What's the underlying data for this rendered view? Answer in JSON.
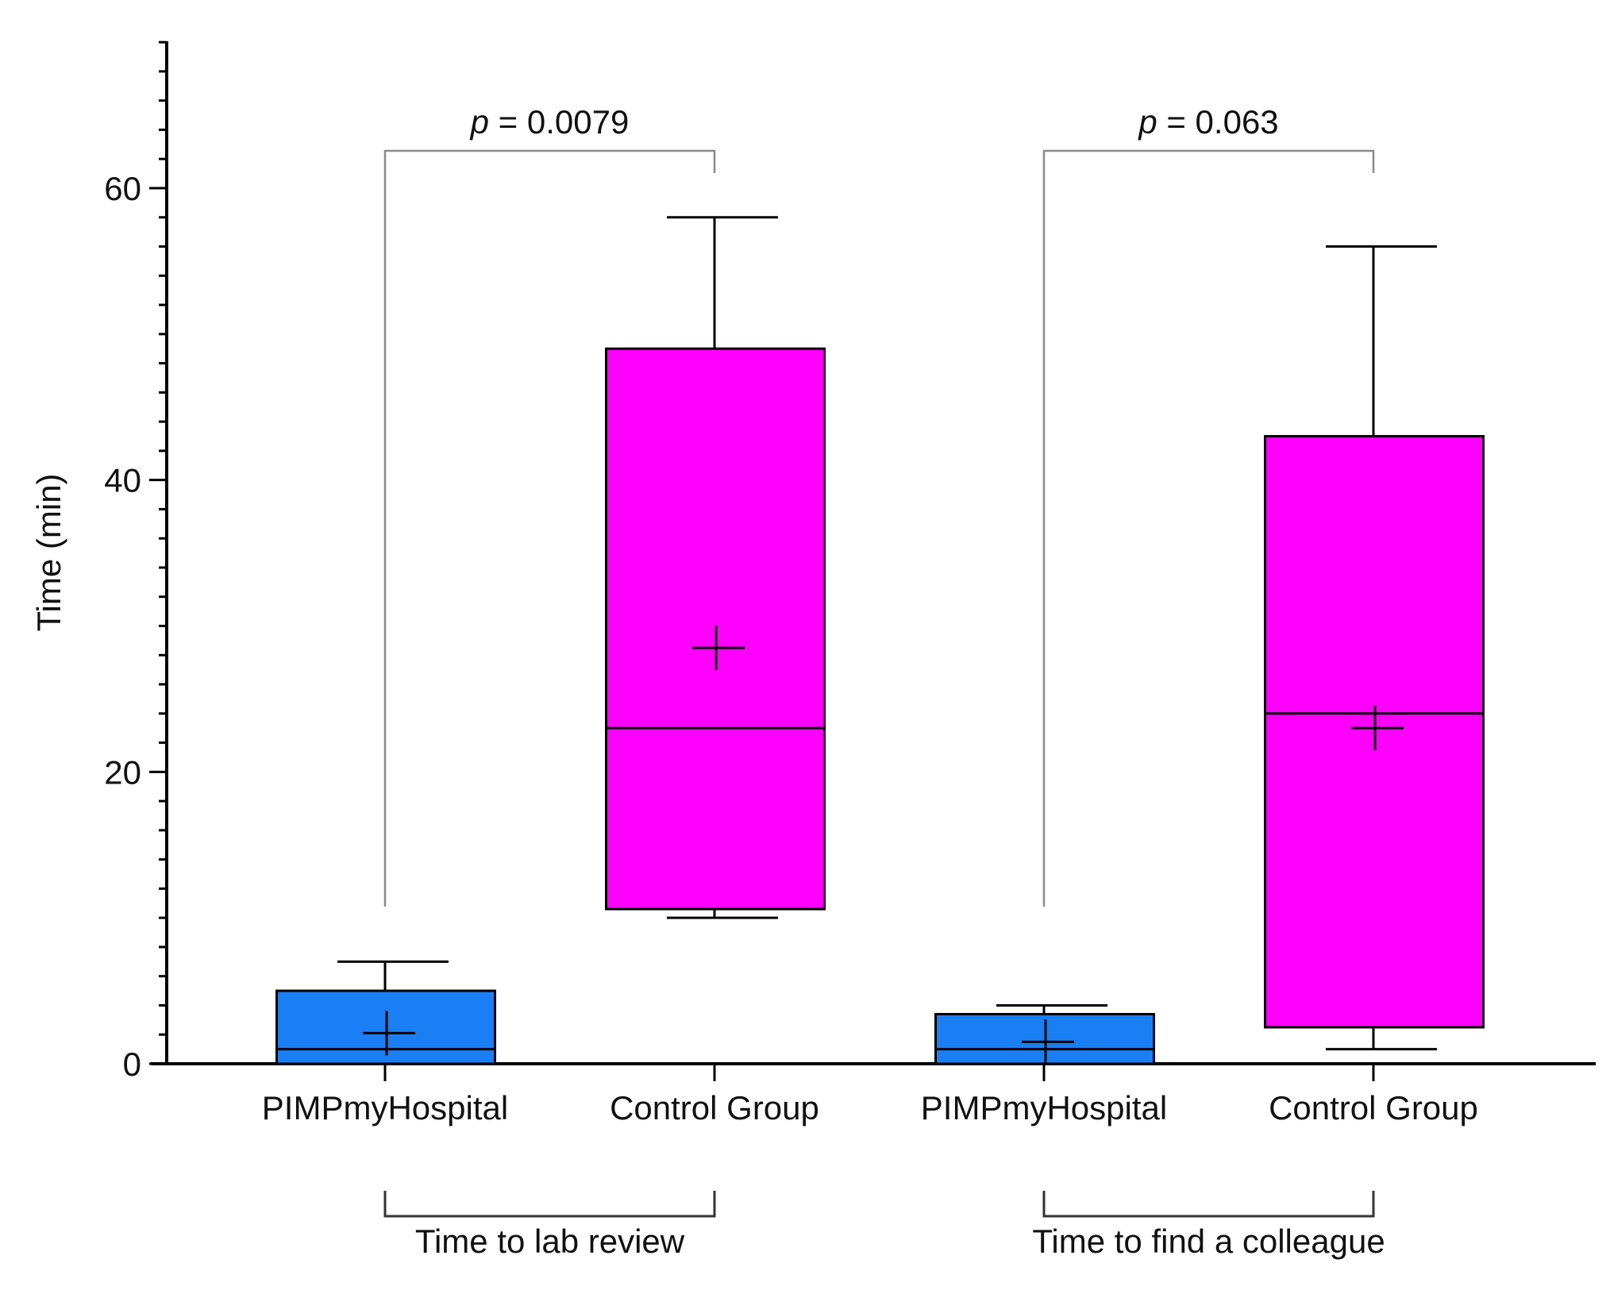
{
  "chart_data": {
    "type": "box",
    "title": "",
    "ylabel": "Time (min)",
    "xlabel": "",
    "ylim": [
      0,
      70
    ],
    "y_ticks": [
      0,
      20,
      40,
      60
    ],
    "y_minor_step": 2,
    "colors": {
      "PIMPmyHospital": "#1a7ff5",
      "Control Group": "#ff00ff"
    },
    "categories": [
      "PIMPmyHospital",
      "Control Group",
      "PIMPmyHospital",
      "Control Group"
    ],
    "groups": [
      {
        "label": "Time to lab review",
        "p_label_prefix": "p",
        "p_label_value": " = 0.0079"
      },
      {
        "label": "Time to find a colleague",
        "p_label_prefix": "p",
        "p_label_value": " = 0.063"
      }
    ],
    "boxes": [
      {
        "category": "PIMPmyHospital",
        "group": 0,
        "min": 0,
        "q1": 0,
        "median": 1,
        "q3": 5,
        "max": 7,
        "mean": 2.1
      },
      {
        "category": "Control Group",
        "group": 0,
        "min": 10,
        "q1": 10.6,
        "median": 23,
        "q3": 49,
        "max": 58,
        "mean": 28.5
      },
      {
        "category": "PIMPmyHospital",
        "group": 1,
        "min": 0,
        "q1": 0,
        "median": 1,
        "q3": 3.4,
        "max": 4,
        "mean": 1.5
      },
      {
        "category": "Control Group",
        "group": 1,
        "min": 1,
        "q1": 2.5,
        "median": 24,
        "q3": 43,
        "max": 56,
        "mean": 23
      }
    ]
  }
}
